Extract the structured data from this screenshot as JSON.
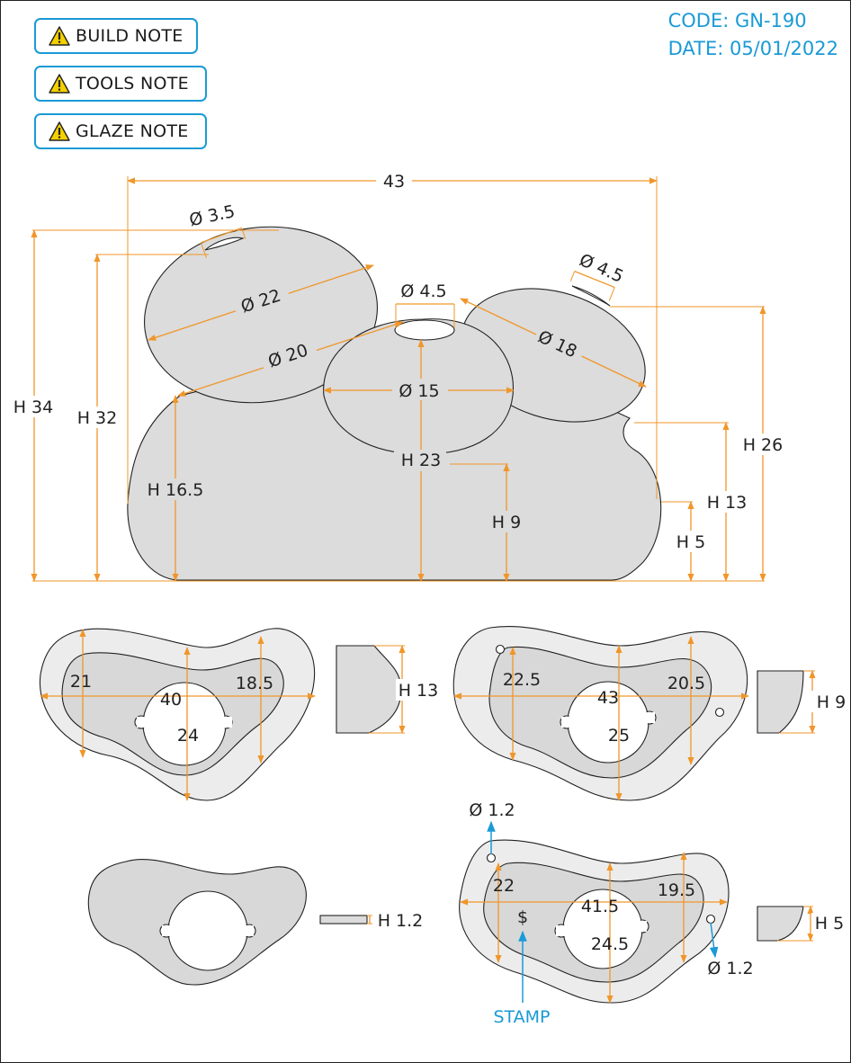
{
  "notes": [
    {
      "label": "BUILD NOTE"
    },
    {
      "label": "TOOLS NOTE"
    },
    {
      "label": "GLAZE NOTE"
    }
  ],
  "header": {
    "code": "CODE: GN-190",
    "date": "DATE: 05/01/2022"
  },
  "colors": {
    "accent": "#1a9ad6",
    "dimension": "#f0962a",
    "part_fill": "#dcdcdc",
    "part_fill_light": "#ececec",
    "warning": "#f5d000"
  },
  "icons": [
    "warning-icon"
  ],
  "front_view": {
    "overall_width": "43",
    "heights": [
      "H 34",
      "H 32",
      "H 26",
      "H 16.5",
      "H 23",
      "H 13",
      "H 9",
      "H 5"
    ],
    "diameters": [
      "Ø 3.5",
      "Ø 22",
      "Ø 20",
      "Ø 4.5",
      "Ø 4.5",
      "Ø 18",
      "Ø 15"
    ]
  },
  "layer1": {
    "w1": "21",
    "w2": "40",
    "w3": "18.5",
    "depth": "24",
    "height": "H 13"
  },
  "layer2": {
    "w1": "22.5",
    "w2": "43",
    "w3": "20.5",
    "depth": "25",
    "height": "H 9"
  },
  "layer3": {
    "height": "H 1.2"
  },
  "layer4": {
    "w1": "22",
    "w2": "41.5",
    "w3": "19.5",
    "depth": "24.5",
    "height": "H 5",
    "hole_top": "Ø 1.2",
    "hole_bottom": "Ø 1.2",
    "stamp_symbol": "$",
    "stamp_label": "STAMP"
  }
}
